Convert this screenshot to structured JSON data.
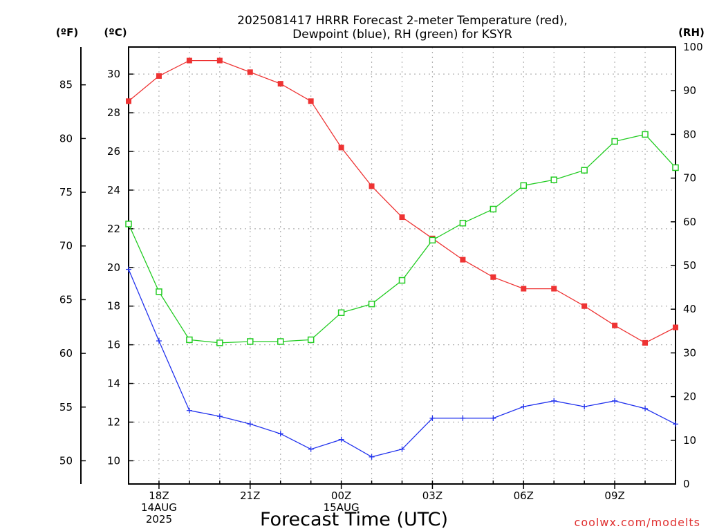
{
  "title_line1": "2025081417 HRRR Forecast 2-meter Temperature (red),",
  "title_line2": "Dewpoint (blue), RH (green) for KSYR",
  "unit_f": "(ºF)",
  "unit_c": "(ºC)",
  "unit_rh": "(RH)",
  "credit": "coolwx.com/modelts",
  "colors": {
    "temperature": "#ee3333",
    "dewpoint": "#2233ee",
    "rh": "#22cc22"
  },
  "chart_data": {
    "type": "line",
    "xlabel": "Forecast Time (UTC)",
    "x_hours_from_run": [
      0,
      1,
      2,
      3,
      4,
      5,
      6,
      7,
      8,
      9,
      10,
      11,
      12,
      13,
      14,
      15,
      16,
      17,
      18
    ],
    "x_ticks": [
      {
        "hour": 1,
        "lines": [
          "18Z",
          "14AUG",
          "2025"
        ]
      },
      {
        "hour": 4,
        "lines": [
          "21Z"
        ]
      },
      {
        "hour": 7,
        "lines": [
          "00Z",
          "15AUG"
        ]
      },
      {
        "hour": 10,
        "lines": [
          "03Z"
        ]
      },
      {
        "hour": 13,
        "lines": [
          "06Z"
        ]
      },
      {
        "hour": 16,
        "lines": [
          "09Z"
        ]
      }
    ],
    "y_left_c": {
      "label": "(ºC)",
      "ylim": [
        8.8,
        31.4
      ],
      "ticks": [
        10,
        12,
        14,
        16,
        18,
        20,
        22,
        24,
        26,
        28,
        30
      ]
    },
    "y_left_f": {
      "label": "(ºF)",
      "ticks": [
        50,
        55,
        60,
        65,
        70,
        75,
        80,
        85
      ]
    },
    "y_right_rh": {
      "label": "(RH)",
      "ylim": [
        0,
        100
      ],
      "ticks": [
        0,
        10,
        20,
        30,
        40,
        50,
        60,
        70,
        80,
        90,
        100
      ]
    },
    "grid": true,
    "series": [
      {
        "name": "Temperature",
        "axis": "c",
        "marker": "filled-square",
        "color": "#ee3333",
        "values": [
          28.6,
          29.9,
          30.7,
          30.7,
          30.1,
          29.5,
          28.6,
          26.2,
          24.2,
          22.6,
          21.5,
          20.4,
          19.5,
          18.9,
          18.9,
          18.0,
          17.0,
          16.1,
          16.9
        ]
      },
      {
        "name": "Dewpoint",
        "axis": "c",
        "marker": "plus",
        "color": "#2233ee",
        "values": [
          19.9,
          16.2,
          12.6,
          12.3,
          11.9,
          11.4,
          10.6,
          11.1,
          10.2,
          10.6,
          12.2,
          12.2,
          12.2,
          12.8,
          13.1,
          12.8,
          13.1,
          12.7,
          11.9
        ]
      },
      {
        "name": "RH",
        "axis": "rh",
        "marker": "open-square",
        "color": "#22cc22",
        "values": [
          59.5,
          44.0,
          33.0,
          32.3,
          32.6,
          32.6,
          33.0,
          39.2,
          41.2,
          46.6,
          55.8,
          59.7,
          62.9,
          68.3,
          69.6,
          71.8,
          78.4,
          80.0,
          72.4
        ]
      }
    ]
  }
}
